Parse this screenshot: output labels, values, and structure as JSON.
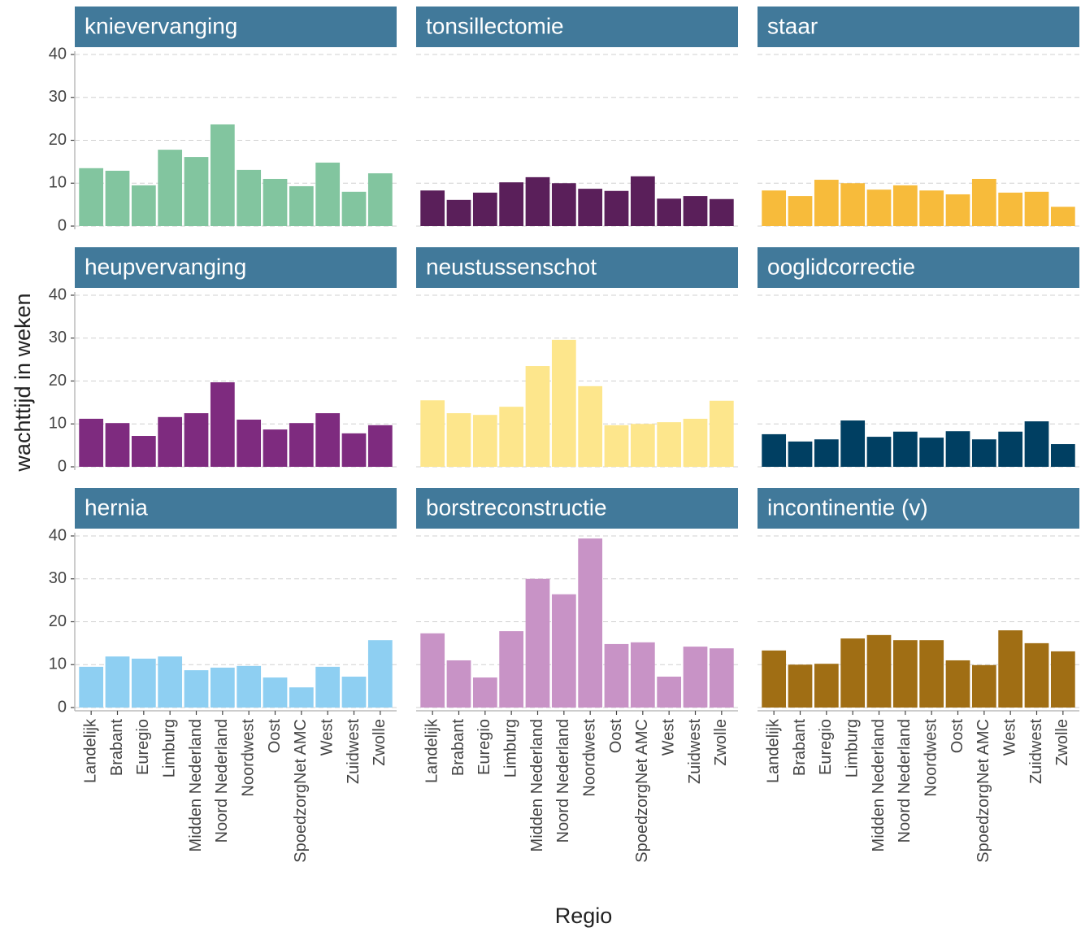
{
  "chart_data": {
    "type": "bar",
    "x_label": "Regio",
    "y_label": "wachttijd in weken",
    "categories": [
      "Landelijk",
      "Brabant",
      "Euregio",
      "Limburg",
      "Midden Nederland",
      "Noord Nederland",
      "Noordwest",
      "Oost",
      "SpoedzorgNet AMC",
      "West",
      "Zuidwest",
      "Zwolle"
    ],
    "ylim": [
      0,
      40
    ],
    "yticks": [
      0,
      10,
      20,
      30,
      40
    ],
    "grid": true,
    "panels": [
      {
        "title": "knievervanging",
        "color": "#82c59f",
        "values": [
          13.5,
          12.9,
          9.5,
          17.8,
          16.1,
          23.7,
          13.1,
          11.0,
          9.3,
          14.8,
          8.0,
          12.3
        ]
      },
      {
        "title": "tonsillectomie",
        "color": "#5a1f5a",
        "values": [
          8.3,
          6.1,
          7.8,
          10.2,
          11.4,
          10.0,
          8.7,
          8.2,
          11.6,
          6.4,
          7.0,
          6.3
        ]
      },
      {
        "title": "staar",
        "color": "#f7bb3b",
        "values": [
          8.3,
          7.0,
          10.8,
          10.0,
          8.5,
          9.5,
          8.3,
          7.4,
          11.0,
          7.8,
          8.0,
          4.5
        ]
      },
      {
        "title": "heupvervanging",
        "color": "#7e2b7f",
        "values": [
          11.2,
          10.2,
          7.2,
          11.6,
          12.5,
          19.7,
          11.0,
          8.7,
          10.2,
          12.5,
          7.8,
          9.7
        ]
      },
      {
        "title": "neustussenschot",
        "color": "#fde68c",
        "values": [
          15.5,
          12.5,
          12.1,
          14.0,
          23.5,
          29.6,
          18.8,
          9.7,
          10.0,
          10.4,
          11.2,
          15.4
        ]
      },
      {
        "title": "ooglidcorrectie",
        "color": "#003f62",
        "values": [
          7.6,
          5.9,
          6.4,
          10.8,
          7.0,
          8.2,
          6.8,
          8.3,
          6.4,
          8.2,
          10.6,
          5.3
        ]
      },
      {
        "title": "hernia",
        "color": "#8ecff2",
        "values": [
          9.5,
          11.9,
          11.4,
          11.9,
          8.7,
          9.3,
          9.7,
          7.0,
          4.7,
          9.5,
          7.2,
          15.7
        ]
      },
      {
        "title": "borstreconstructie",
        "color": "#c893c6",
        "values": [
          17.3,
          11.0,
          7.0,
          17.8,
          30.0,
          26.4,
          39.4,
          14.8,
          15.2,
          7.2,
          14.2,
          13.8
        ]
      },
      {
        "title": "incontinentie (v)",
        "color": "#a06e14",
        "values": [
          13.3,
          10.0,
          10.2,
          16.1,
          16.9,
          15.7,
          15.7,
          11.0,
          9.9,
          18.0,
          15.0,
          13.1
        ]
      }
    ]
  }
}
